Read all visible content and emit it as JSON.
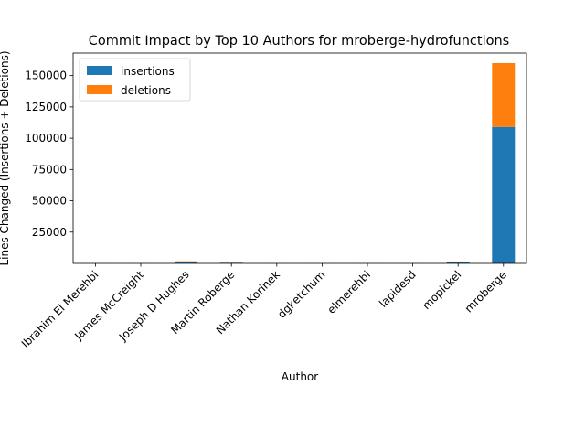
{
  "chart_data": {
    "type": "bar",
    "stacked": true,
    "title": "Commit Impact by Top 10 Authors for mroberge-hydrofunctions",
    "xlabel": "Author",
    "ylabel": "Lines Changed (Insertions + Deletions)",
    "categories": [
      "Ibrahim El Merehbi",
      "James McCreight",
      "Joseph D Hughes",
      "Martin Roberge",
      "Nathan Korinek",
      "dgketchum",
      "elmerehbi",
      "lapidesd",
      "mopickel",
      "mroberge"
    ],
    "series": [
      {
        "name": "insertions",
        "color": "#1f77b4",
        "values": [
          20,
          10,
          800,
          500,
          5,
          10,
          10,
          10,
          1300,
          109000
        ]
      },
      {
        "name": "deletions",
        "color": "#ff7f0e",
        "values": [
          10,
          10,
          900,
          100,
          5,
          5,
          5,
          5,
          200,
          51000
        ]
      }
    ],
    "ylim": [
      0,
      168000
    ],
    "yticks": [
      25000,
      50000,
      75000,
      100000,
      125000,
      150000
    ],
    "legend": "top-left"
  }
}
